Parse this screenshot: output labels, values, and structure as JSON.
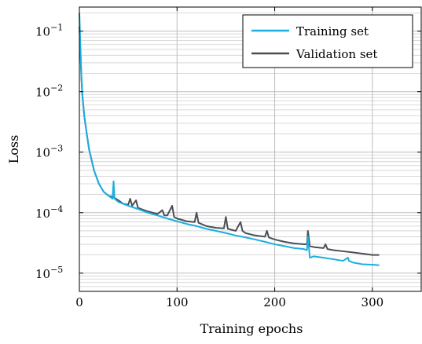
{
  "chart_data": {
    "type": "line",
    "xlabel": "Training epochs",
    "ylabel": "Loss",
    "xlim": [
      0,
      350
    ],
    "ylim": [
      5e-06,
      0.25
    ],
    "yscale": "log",
    "grid": true,
    "legend_position": "top-right",
    "x_ticks": [
      0,
      100,
      200,
      300
    ],
    "x_tick_labels": [
      "0",
      "100",
      "200",
      "300"
    ],
    "y_ticks": [
      1e-05,
      0.0001,
      0.001,
      0.01,
      0.1
    ],
    "y_tick_labels": [
      {
        "base": "10",
        "exp": "−5"
      },
      {
        "base": "10",
        "exp": "−4"
      },
      {
        "base": "10",
        "exp": "−3"
      },
      {
        "base": "10",
        "exp": "−2"
      },
      {
        "base": "10",
        "exp": "−1"
      }
    ],
    "series": [
      {
        "name": "Training set",
        "color": "#1aafe0",
        "points": [
          [
            0,
            0.2
          ],
          [
            1,
            0.06
          ],
          [
            2,
            0.02
          ],
          [
            3,
            0.009
          ],
          [
            5,
            0.004
          ],
          [
            8,
            0.0018
          ],
          [
            10,
            0.0011
          ],
          [
            15,
            0.0005
          ],
          [
            20,
            0.0003
          ],
          [
            25,
            0.00022
          ],
          [
            30,
            0.00019
          ],
          [
            34,
            0.00017
          ],
          [
            35,
            0.00033
          ],
          [
            36,
            0.00017
          ],
          [
            40,
            0.00015
          ],
          [
            50,
            0.00013
          ],
          [
            60,
            0.000115
          ],
          [
            70,
            0.0001
          ],
          [
            80,
            9e-05
          ],
          [
            90,
            8e-05
          ],
          [
            100,
            7.2e-05
          ],
          [
            110,
            6.5e-05
          ],
          [
            120,
            6e-05
          ],
          [
            130,
            5.4e-05
          ],
          [
            140,
            5e-05
          ],
          [
            150,
            4.6e-05
          ],
          [
            160,
            4.2e-05
          ],
          [
            170,
            3.9e-05
          ],
          [
            180,
            3.6e-05
          ],
          [
            190,
            3.3e-05
          ],
          [
            200,
            3e-05
          ],
          [
            210,
            2.8e-05
          ],
          [
            220,
            2.6e-05
          ],
          [
            230,
            2.5e-05
          ],
          [
            233,
            2.4e-05
          ],
          [
            234,
            4e-05
          ],
          [
            236,
            1.8e-05
          ],
          [
            240,
            1.9e-05
          ],
          [
            250,
            1.8e-05
          ],
          [
            260,
            1.7e-05
          ],
          [
            270,
            1.6e-05
          ],
          [
            275,
            1.8e-05
          ],
          [
            276,
            1.6e-05
          ],
          [
            280,
            1.5e-05
          ],
          [
            290,
            1.4e-05
          ],
          [
            300,
            1.38e-05
          ],
          [
            307,
            1.35e-05
          ]
        ]
      },
      {
        "name": "Validation set",
        "color": "#4a4f56",
        "points": [
          [
            0,
            0.12
          ],
          [
            1,
            0.05
          ],
          [
            2,
            0.018
          ],
          [
            3,
            0.009
          ],
          [
            5,
            0.004
          ],
          [
            8,
            0.0018
          ],
          [
            10,
            0.0011
          ],
          [
            15,
            0.0005
          ],
          [
            20,
            0.0003
          ],
          [
            25,
            0.00022
          ],
          [
            30,
            0.00019
          ],
          [
            35,
            0.00018
          ],
          [
            40,
            0.00016
          ],
          [
            45,
            0.00014
          ],
          [
            50,
            0.000135
          ],
          [
            52,
            0.00017
          ],
          [
            54,
            0.00013
          ],
          [
            58,
            0.00016
          ],
          [
            60,
            0.00012
          ],
          [
            70,
            0.000105
          ],
          [
            80,
            9.5e-05
          ],
          [
            85,
            0.00011
          ],
          [
            87,
            9e-05
          ],
          [
            90,
            9e-05
          ],
          [
            95,
            0.00013
          ],
          [
            97,
            8.5e-05
          ],
          [
            100,
            8e-05
          ],
          [
            110,
            7.2e-05
          ],
          [
            118,
            7e-05
          ],
          [
            120,
            0.0001
          ],
          [
            122,
            6.8e-05
          ],
          [
            130,
            6e-05
          ],
          [
            140,
            5.6e-05
          ],
          [
            148,
            5.5e-05
          ],
          [
            150,
            8.5e-05
          ],
          [
            152,
            5.4e-05
          ],
          [
            160,
            5e-05
          ],
          [
            165,
            7e-05
          ],
          [
            167,
            5e-05
          ],
          [
            170,
            4.6e-05
          ],
          [
            180,
            4.2e-05
          ],
          [
            190,
            4e-05
          ],
          [
            192,
            5e-05
          ],
          [
            194,
            3.9e-05
          ],
          [
            200,
            3.6e-05
          ],
          [
            210,
            3.3e-05
          ],
          [
            220,
            3.1e-05
          ],
          [
            230,
            3e-05
          ],
          [
            233,
            3e-05
          ],
          [
            234,
            5e-05
          ],
          [
            236,
            2.8e-05
          ],
          [
            240,
            2.7e-05
          ],
          [
            250,
            2.6e-05
          ],
          [
            252,
            3e-05
          ],
          [
            254,
            2.5e-05
          ],
          [
            260,
            2.4e-05
          ],
          [
            270,
            2.3e-05
          ],
          [
            280,
            2.2e-05
          ],
          [
            290,
            2.1e-05
          ],
          [
            300,
            2e-05
          ],
          [
            307,
            2e-05
          ]
        ]
      }
    ]
  }
}
